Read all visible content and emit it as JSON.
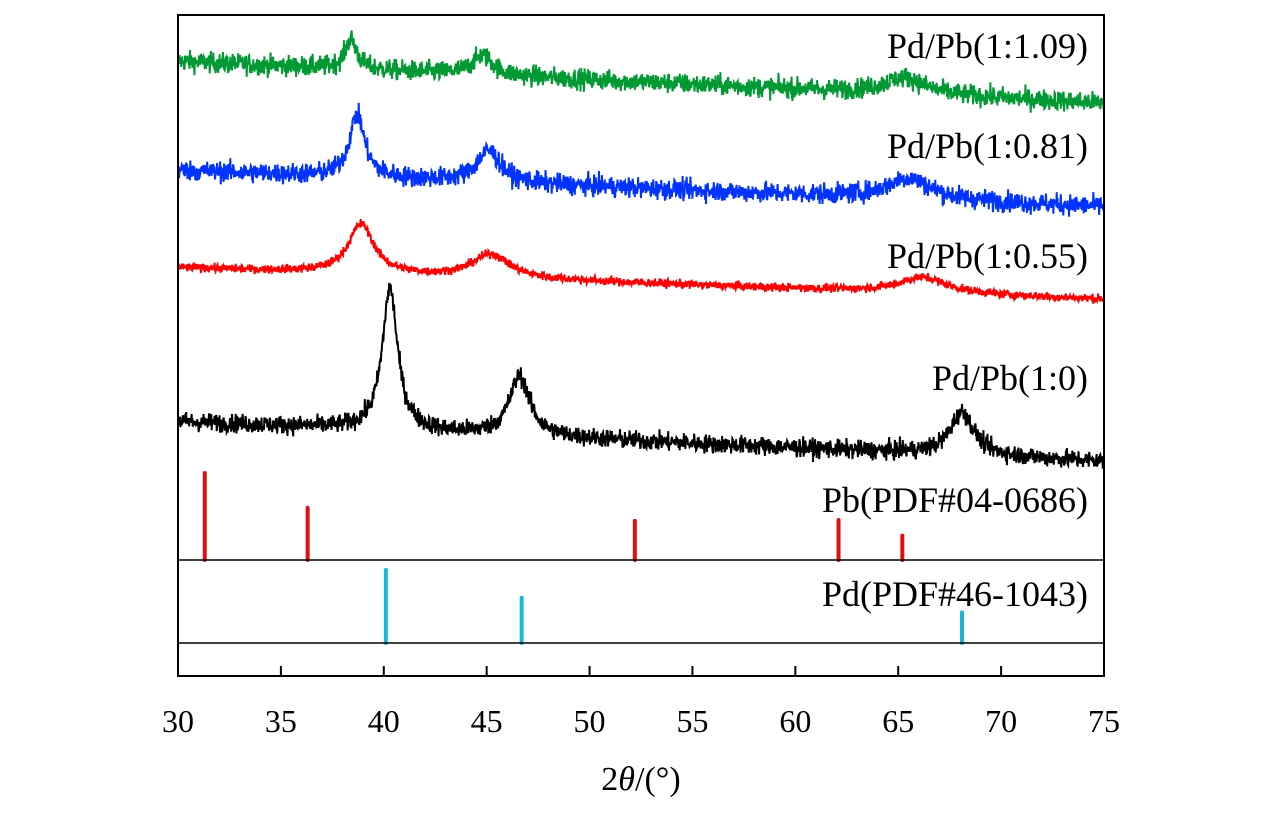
{
  "chart_data": {
    "type": "line",
    "title": "",
    "xlabel": "2θ/(°)",
    "xlabel_parts": {
      "prefix": "2",
      "theta": "θ",
      "suffix": "/(°)"
    },
    "ylabel": "",
    "xlim": [
      30,
      75
    ],
    "ylim": [
      0,
      100
    ],
    "y_units": "a.u. (stacked offset)",
    "xticks": [
      30,
      35,
      40,
      45,
      50,
      55,
      60,
      65,
      70,
      75
    ],
    "grid": false,
    "series": [
      {
        "name": "Pd/Pb(1:1.09)",
        "color": "#009933",
        "baseline_start": 93,
        "baseline_end": 86.7,
        "noise": 1.1,
        "peaks": [
          [
            38.4,
            4.5,
            0.35
          ],
          [
            44.8,
            3.0,
            0.6
          ],
          [
            65.3,
            2.5,
            1.2
          ]
        ]
      },
      {
        "name": "Pd/Pb(1:0.81)",
        "color": "#0033ff",
        "baseline_start": 76.5,
        "baseline_end": 71,
        "noise": 1.1,
        "peaks": [
          [
            38.7,
            9.5,
            0.45
          ],
          [
            45.1,
            4.8,
            0.7
          ],
          [
            65.5,
            3.2,
            1.3
          ]
        ]
      },
      {
        "name": "Pd/Pb(1:0.55)",
        "color": "#ff0000",
        "baseline_start": 61.8,
        "baseline_end": 57,
        "noise": 0.45,
        "peaks": [
          [
            38.9,
            7.5,
            0.75
          ],
          [
            45.2,
            3.6,
            1.1
          ],
          [
            66.2,
            2.4,
            1.4
          ]
        ]
      },
      {
        "name": "Pd/Pb(1:0)",
        "color": "#000000",
        "baseline_start": 38.5,
        "baseline_end": 32.5,
        "noise": 1.0,
        "peaks": [
          [
            40.3,
            21.5,
            0.45
          ],
          [
            46.6,
            9.0,
            0.6
          ],
          [
            68.1,
            6.5,
            0.7
          ]
        ]
      }
    ],
    "reference_patterns": [
      {
        "name": "Pb(PDF#04-0686)",
        "color": "#dd1111",
        "lines": [
          [
            31.3,
            100
          ],
          [
            36.3,
            60
          ],
          [
            52.2,
            45
          ],
          [
            62.1,
            46
          ],
          [
            65.2,
            28
          ]
        ]
      },
      {
        "name": "Pd(PDF#46-1043)",
        "color": "#1ab8d8",
        "lines": [
          [
            40.1,
            100
          ],
          [
            46.7,
            62
          ],
          [
            68.1,
            42
          ]
        ]
      }
    ]
  }
}
